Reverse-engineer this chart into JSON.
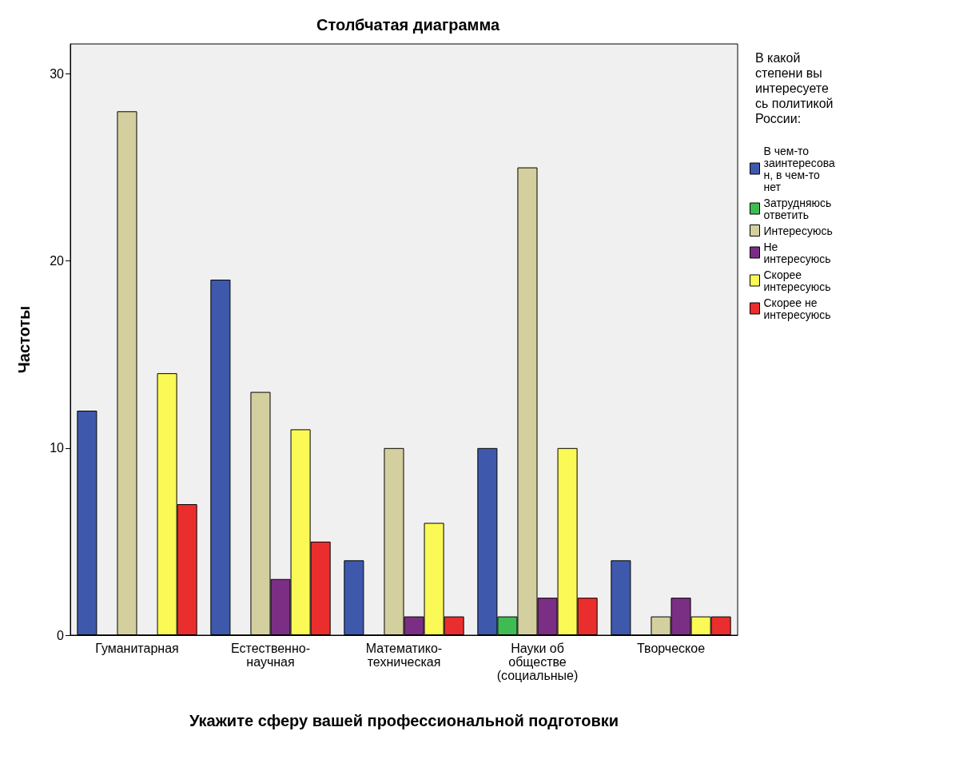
{
  "chart_data": {
    "type": "bar",
    "title": "Столбчатая диаграмма",
    "xlabel": "Укажите сферу вашей профессиональной подготовки",
    "ylabel": "Частоты",
    "legend_title": "В какой степени вы интересуетесь политикой России:",
    "categories": [
      "Гуманитарная",
      "Естественно-\nнаучная",
      "Математико-\nтехническая",
      "Науки об\nобществе\n(социальные)",
      "Творческое"
    ],
    "series": [
      {
        "name": "В чем-то заинтересован, в чем-то нет",
        "color": "#3e58ac",
        "values": [
          12,
          19,
          4,
          10,
          4
        ]
      },
      {
        "name": "Затрудняюсь ответить",
        "color": "#3ebc53",
        "values": [
          0,
          0,
          0,
          1,
          0
        ]
      },
      {
        "name": "Интересуюсь",
        "color": "#d4cf9e",
        "values": [
          28,
          13,
          10,
          25,
          1
        ]
      },
      {
        "name": "Не интересуюсь",
        "color": "#7b2f84",
        "values": [
          0,
          3,
          1,
          2,
          2
        ]
      },
      {
        "name": "Скорее интересуюсь",
        "color": "#fbf955",
        "values": [
          14,
          11,
          6,
          10,
          1
        ]
      },
      {
        "name": "Скорее не интересуюсь",
        "color": "#ea2e2d",
        "values": [
          7,
          5,
          1,
          2,
          1
        ]
      }
    ],
    "ylim": [
      0,
      31.6
    ],
    "yticks": [
      0,
      10,
      20,
      30
    ],
    "grid": false,
    "legend": "right"
  }
}
